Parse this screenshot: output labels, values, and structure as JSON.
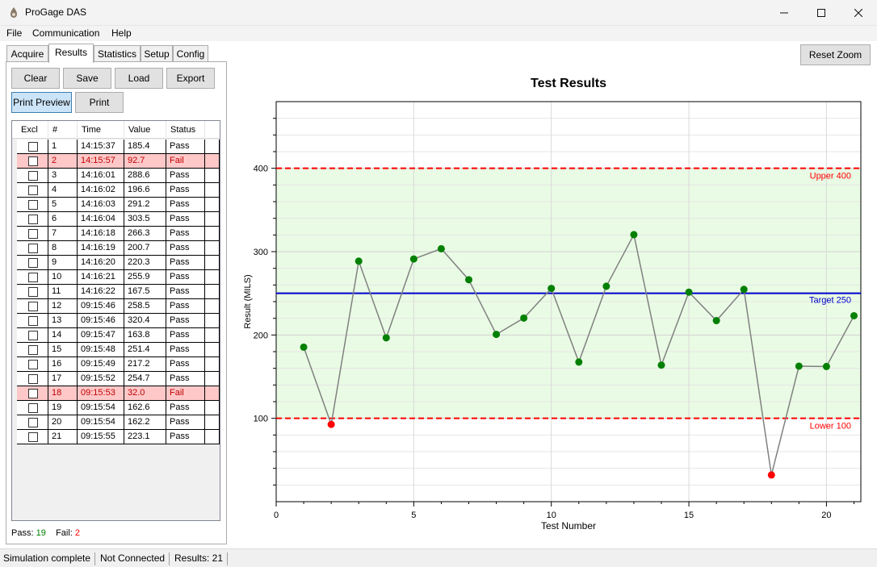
{
  "window": {
    "title": "ProGage DAS",
    "min": "–",
    "max": "☐",
    "close": "✕"
  },
  "menu": [
    "File",
    "Communication",
    "Help"
  ],
  "tabs": [
    "Acquire",
    "Results",
    "Statistics",
    "Setup",
    "Config"
  ],
  "buttons": {
    "clear": "Clear",
    "save": "Save",
    "load": "Load",
    "export": "Export",
    "print_preview": "Print Preview",
    "print": "Print",
    "reset_zoom": "Reset Zoom"
  },
  "table": {
    "headers": [
      "Excl",
      "#",
      "Time",
      "Value",
      "Status"
    ],
    "rows": [
      {
        "n": "1",
        "time": "14:15:37",
        "value": "185.4",
        "status": "Pass"
      },
      {
        "n": "2",
        "time": "14:15:57",
        "value": "92.7",
        "status": "Fail"
      },
      {
        "n": "3",
        "time": "14:16:01",
        "value": "288.6",
        "status": "Pass"
      },
      {
        "n": "4",
        "time": "14:16:02",
        "value": "196.6",
        "status": "Pass"
      },
      {
        "n": "5",
        "time": "14:16:03",
        "value": "291.2",
        "status": "Pass"
      },
      {
        "n": "6",
        "time": "14:16:04",
        "value": "303.5",
        "status": "Pass"
      },
      {
        "n": "7",
        "time": "14:16:18",
        "value": "266.3",
        "status": "Pass"
      },
      {
        "n": "8",
        "time": "14:16:19",
        "value": "200.7",
        "status": "Pass"
      },
      {
        "n": "9",
        "time": "14:16:20",
        "value": "220.3",
        "status": "Pass"
      },
      {
        "n": "10",
        "time": "14:16:21",
        "value": "255.9",
        "status": "Pass"
      },
      {
        "n": "11",
        "time": "14:16:22",
        "value": "167.5",
        "status": "Pass"
      },
      {
        "n": "12",
        "time": "09:15:46",
        "value": "258.5",
        "status": "Pass"
      },
      {
        "n": "13",
        "time": "09:15:46",
        "value": "320.4",
        "status": "Pass"
      },
      {
        "n": "14",
        "time": "09:15:47",
        "value": "163.8",
        "status": "Pass"
      },
      {
        "n": "15",
        "time": "09:15:48",
        "value": "251.4",
        "status": "Pass"
      },
      {
        "n": "16",
        "time": "09:15:49",
        "value": "217.2",
        "status": "Pass"
      },
      {
        "n": "17",
        "time": "09:15:52",
        "value": "254.7",
        "status": "Pass"
      },
      {
        "n": "18",
        "time": "09:15:53",
        "value": "32.0",
        "status": "Fail"
      },
      {
        "n": "19",
        "time": "09:15:54",
        "value": "162.6",
        "status": "Pass"
      },
      {
        "n": "20",
        "time": "09:15:54",
        "value": "162.2",
        "status": "Pass"
      },
      {
        "n": "21",
        "time": "09:15:55",
        "value": "223.1",
        "status": "Pass"
      }
    ]
  },
  "counts": {
    "pass_label": "Pass:",
    "pass": "19",
    "fail_label": "Fail:",
    "fail": "2"
  },
  "status_bar": [
    "Simulation complete",
    "Not Connected",
    "Results: 21"
  ],
  "colors": {
    "pass": "#008000",
    "fail": "#ff0000",
    "target": "#0000cc",
    "limit": "#ff0000",
    "band": "#e9fbe4",
    "line": "#808080"
  },
  "chart_data": {
    "type": "line",
    "title": "Test Results",
    "xlabel": "Test Number",
    "ylabel": "Result (MILS)",
    "xlim": [
      0,
      21.25
    ],
    "ylim": [
      0,
      480
    ],
    "xticks": [
      0,
      5,
      10,
      15,
      20
    ],
    "yticks": [
      100,
      200,
      300,
      400
    ],
    "upper": {
      "value": 400,
      "label": "Upper 400"
    },
    "target": {
      "value": 250,
      "label": "Target 250"
    },
    "lower": {
      "value": 100,
      "label": "Lower 100"
    },
    "x": [
      1,
      2,
      3,
      4,
      5,
      6,
      7,
      8,
      9,
      10,
      11,
      12,
      13,
      14,
      15,
      16,
      17,
      18,
      19,
      20,
      21
    ],
    "values": [
      185.4,
      92.7,
      288.6,
      196.6,
      291.2,
      303.5,
      266.3,
      200.7,
      220.3,
      255.9,
      167.5,
      258.5,
      320.4,
      163.8,
      251.4,
      217.2,
      254.7,
      32.0,
      162.6,
      162.2,
      223.1
    ],
    "status": [
      "Pass",
      "Fail",
      "Pass",
      "Pass",
      "Pass",
      "Pass",
      "Pass",
      "Pass",
      "Pass",
      "Pass",
      "Pass",
      "Pass",
      "Pass",
      "Pass",
      "Pass",
      "Pass",
      "Pass",
      "Fail",
      "Pass",
      "Pass",
      "Pass"
    ],
    "grid": true
  }
}
